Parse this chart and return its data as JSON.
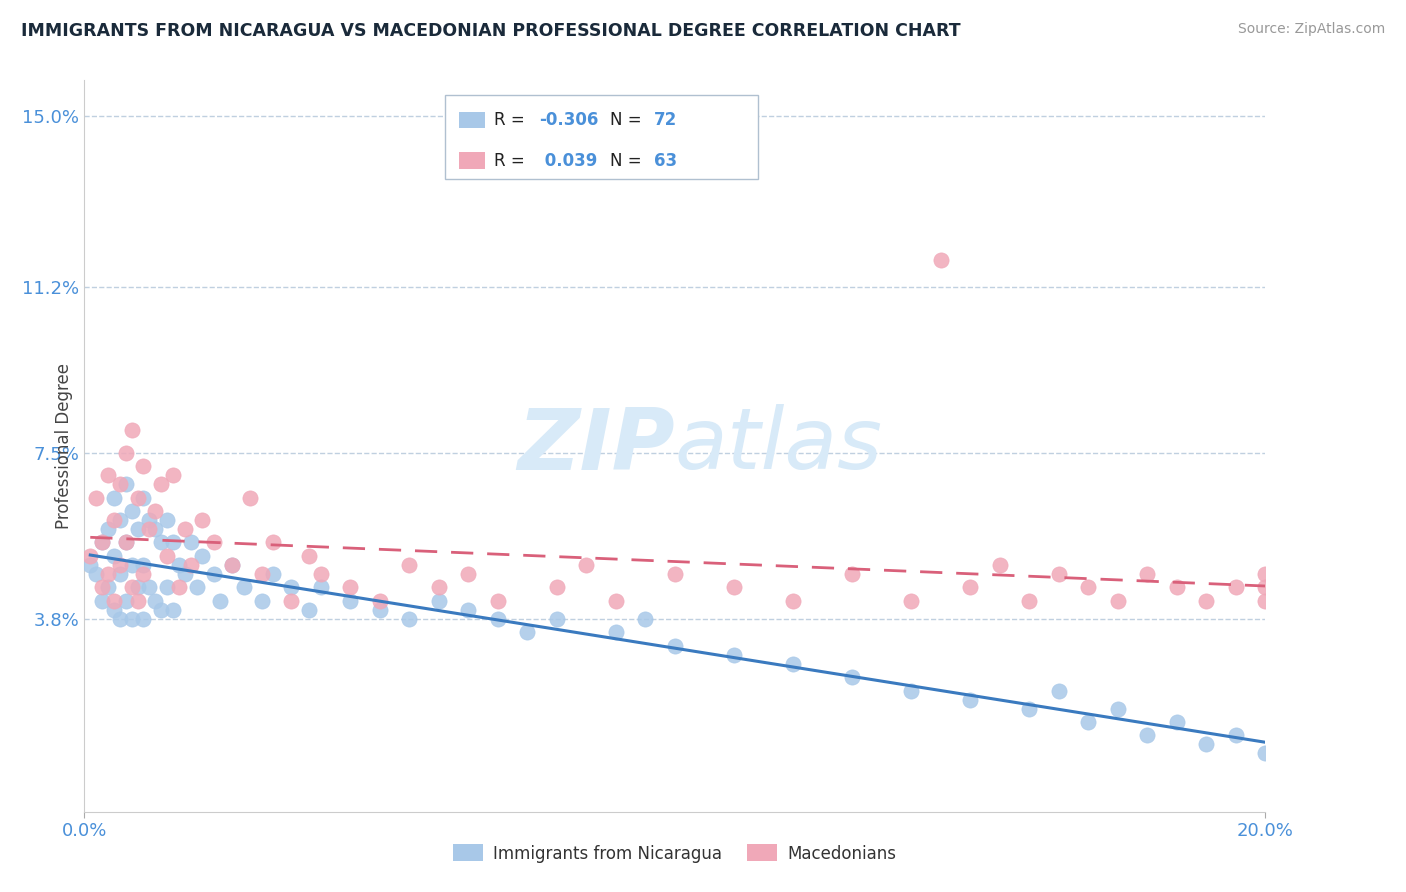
{
  "title": "IMMIGRANTS FROM NICARAGUA VS MACEDONIAN PROFESSIONAL DEGREE CORRELATION CHART",
  "source": "Source: ZipAtlas.com",
  "ylabel": "Professional Degree",
  "legend_labels": [
    "Immigrants from Nicaragua",
    "Macedonians"
  ],
  "r_nicaragua": -0.306,
  "n_nicaragua": 72,
  "r_macedonian": 0.039,
  "n_macedonian": 63,
  "x_min": 0.0,
  "x_max": 0.2,
  "y_min": -0.005,
  "y_max": 0.158,
  "y_ticks": [
    0.038,
    0.075,
    0.112,
    0.15
  ],
  "y_tick_labels": [
    "3.8%",
    "7.5%",
    "11.2%",
    "15.0%"
  ],
  "color_nicaragua": "#a8c8e8",
  "color_macedonian": "#f0a8b8",
  "line_color_nicaragua": "#3a7abf",
  "line_color_macedonian": "#d9607a",
  "watermark_color": "#d8eaf8",
  "background_color": "#ffffff",
  "grid_color": "#c0d0e0",
  "title_color": "#1a2a3a",
  "axis_label_color": "#4a90d9",
  "nicaragua_x": [
    0.001,
    0.002,
    0.003,
    0.003,
    0.004,
    0.004,
    0.005,
    0.005,
    0.005,
    0.006,
    0.006,
    0.006,
    0.007,
    0.007,
    0.007,
    0.008,
    0.008,
    0.008,
    0.009,
    0.009,
    0.01,
    0.01,
    0.01,
    0.011,
    0.011,
    0.012,
    0.012,
    0.013,
    0.013,
    0.014,
    0.014,
    0.015,
    0.015,
    0.016,
    0.017,
    0.018,
    0.019,
    0.02,
    0.022,
    0.023,
    0.025,
    0.027,
    0.03,
    0.032,
    0.035,
    0.038,
    0.04,
    0.045,
    0.05,
    0.055,
    0.06,
    0.065,
    0.07,
    0.075,
    0.08,
    0.09,
    0.095,
    0.1,
    0.11,
    0.12,
    0.13,
    0.14,
    0.15,
    0.16,
    0.165,
    0.17,
    0.175,
    0.18,
    0.185,
    0.19,
    0.195,
    0.2
  ],
  "nicaragua_y": [
    0.05,
    0.048,
    0.055,
    0.042,
    0.058,
    0.045,
    0.065,
    0.052,
    0.04,
    0.06,
    0.048,
    0.038,
    0.068,
    0.055,
    0.042,
    0.062,
    0.05,
    0.038,
    0.058,
    0.045,
    0.065,
    0.05,
    0.038,
    0.06,
    0.045,
    0.058,
    0.042,
    0.055,
    0.04,
    0.06,
    0.045,
    0.055,
    0.04,
    0.05,
    0.048,
    0.055,
    0.045,
    0.052,
    0.048,
    0.042,
    0.05,
    0.045,
    0.042,
    0.048,
    0.045,
    0.04,
    0.045,
    0.042,
    0.04,
    0.038,
    0.042,
    0.04,
    0.038,
    0.035,
    0.038,
    0.035,
    0.038,
    0.032,
    0.03,
    0.028,
    0.025,
    0.022,
    0.02,
    0.018,
    0.022,
    0.015,
    0.018,
    0.012,
    0.015,
    0.01,
    0.012,
    0.008
  ],
  "macedonian_x": [
    0.001,
    0.002,
    0.003,
    0.003,
    0.004,
    0.004,
    0.005,
    0.005,
    0.006,
    0.006,
    0.007,
    0.007,
    0.008,
    0.008,
    0.009,
    0.009,
    0.01,
    0.01,
    0.011,
    0.012,
    0.013,
    0.014,
    0.015,
    0.016,
    0.017,
    0.018,
    0.02,
    0.022,
    0.025,
    0.028,
    0.03,
    0.032,
    0.035,
    0.038,
    0.04,
    0.045,
    0.05,
    0.055,
    0.06,
    0.065,
    0.07,
    0.08,
    0.085,
    0.09,
    0.1,
    0.11,
    0.12,
    0.13,
    0.14,
    0.145,
    0.15,
    0.155,
    0.16,
    0.165,
    0.17,
    0.175,
    0.18,
    0.185,
    0.19,
    0.195,
    0.2,
    0.2,
    0.2
  ],
  "macedonian_y": [
    0.052,
    0.065,
    0.055,
    0.045,
    0.07,
    0.048,
    0.06,
    0.042,
    0.068,
    0.05,
    0.075,
    0.055,
    0.08,
    0.045,
    0.065,
    0.042,
    0.072,
    0.048,
    0.058,
    0.062,
    0.068,
    0.052,
    0.07,
    0.045,
    0.058,
    0.05,
    0.06,
    0.055,
    0.05,
    0.065,
    0.048,
    0.055,
    0.042,
    0.052,
    0.048,
    0.045,
    0.042,
    0.05,
    0.045,
    0.048,
    0.042,
    0.045,
    0.05,
    0.042,
    0.048,
    0.045,
    0.042,
    0.048,
    0.042,
    0.118,
    0.045,
    0.05,
    0.042,
    0.048,
    0.045,
    0.042,
    0.048,
    0.045,
    0.042,
    0.045,
    0.042,
    0.048,
    0.045
  ]
}
